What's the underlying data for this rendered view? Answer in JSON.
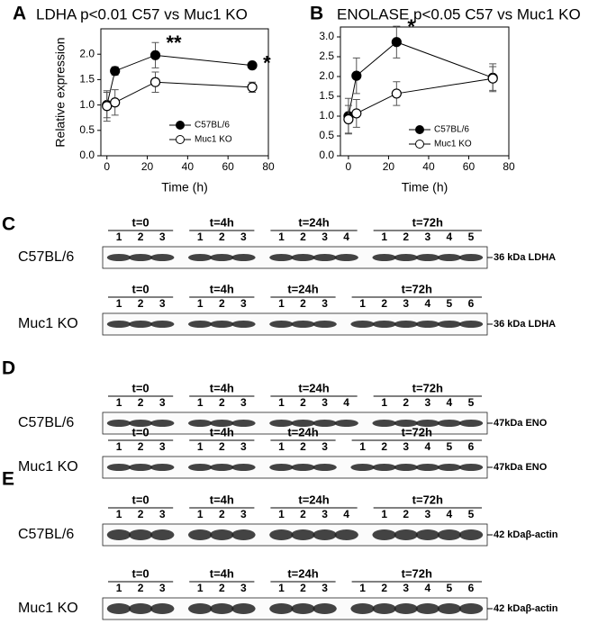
{
  "chart_data": [
    {
      "type": "line",
      "panel": "A",
      "title": "LDHA p<0.01 C57 vs Muc1 KO",
      "ylabel": "Relative expression",
      "xlabel": "Time (h)",
      "x": [
        0,
        4,
        24,
        72
      ],
      "series": [
        {
          "name": "C57BL/6",
          "color": "#000000",
          "filled": true,
          "values": [
            1.0,
            1.67,
            1.98,
            1.78
          ],
          "errors": [
            0.25,
            0.08,
            0.25,
            0.05
          ]
        },
        {
          "name": "Muc1 KO",
          "color": "#000000",
          "filled": false,
          "values": [
            0.98,
            1.05,
            1.45,
            1.35
          ],
          "errors": [
            0.3,
            0.25,
            0.2,
            0.1
          ]
        }
      ],
      "annotations": [
        {
          "text": "**",
          "x": 24
        },
        {
          "text": "*",
          "x": 72
        }
      ],
      "xlim": [
        -3,
        80
      ],
      "xticks": [
        0,
        20,
        40,
        60,
        80
      ],
      "ylim": [
        0,
        2.5
      ],
      "yticks": [
        {
          "value": 0,
          "label": "0.0"
        },
        0.5,
        {
          "value": 1,
          "label": "1.0"
        },
        1.5,
        {
          "value": 2,
          "label": "2.0"
        }
      ],
      "legend": "lower right"
    },
    {
      "type": "line",
      "panel": "B",
      "title": "ENOLASE p<0.05 C57 vs Muc1 KO",
      "xlabel": "Time (h)",
      "x": [
        0,
        4,
        24,
        72
      ],
      "series": [
        {
          "name": "C57BL/6",
          "color": "#000000",
          "filled": true,
          "values": [
            1.0,
            2.02,
            2.87,
            1.97
          ],
          "errors": [
            0.45,
            0.45,
            0.4,
            0.35
          ]
        },
        {
          "name": "Muc1 KO",
          "color": "#000000",
          "filled": false,
          "values": [
            0.92,
            1.07,
            1.57,
            1.95
          ],
          "errors": [
            0.35,
            0.35,
            0.3,
            0.3
          ]
        }
      ],
      "annotations": [
        {
          "text": "*",
          "x": 24
        }
      ],
      "xlim": [
        -4,
        80
      ],
      "xticks": [
        0,
        20,
        40,
        60,
        80
      ],
      "ylim": [
        0,
        3.25
      ],
      "yticks": [
        {
          "value": 0,
          "label": "0.0"
        },
        0.5,
        {
          "value": 1,
          "label": "1.0"
        },
        1.5,
        {
          "value": 2,
          "label": "2.0"
        },
        2.5,
        {
          "value": 3,
          "label": "3.0"
        }
      ],
      "legend": "lower right"
    }
  ],
  "blots": [
    {
      "panel": "C",
      "rows": [
        {
          "strain": "C57BL/6",
          "marker": "36 kDa LDHA",
          "groups": [
            {
              "label": "t=0",
              "lanes": [
                1,
                2,
                3
              ]
            },
            {
              "label": "t=4h",
              "lanes": [
                1,
                2,
                3
              ]
            },
            {
              "label": "t=24h",
              "lanes": [
                1,
                2,
                3,
                4
              ]
            },
            {
              "label": "t=72h",
              "lanes": [
                1,
                2,
                3,
                4,
                5
              ]
            }
          ]
        },
        {
          "strain": "Muc1 KO",
          "marker": "36 kDa LDHA",
          "groups": [
            {
              "label": "t=0",
              "lanes": [
                1,
                2,
                3
              ]
            },
            {
              "label": "t=4h",
              "lanes": [
                1,
                2,
                3
              ]
            },
            {
              "label": "t=24h",
              "lanes": [
                1,
                2,
                3
              ]
            },
            {
              "label": "t=72h",
              "lanes": [
                1,
                2,
                3,
                4,
                5,
                6
              ]
            }
          ]
        }
      ]
    },
    {
      "panel": "D",
      "rows": [
        {
          "strain": "C57BL/6",
          "marker": "47kDa ENO",
          "groups": [
            {
              "label": "t=0",
              "lanes": [
                1,
                2,
                3
              ]
            },
            {
              "label": "t=4h",
              "lanes": [
                1,
                2,
                3
              ]
            },
            {
              "label": "t=24h",
              "lanes": [
                1,
                2,
                3,
                4
              ]
            },
            {
              "label": "t=72h",
              "lanes": [
                1,
                2,
                3,
                4,
                5
              ]
            }
          ]
        },
        {
          "strain": "Muc1 KO",
          "marker": "47kDa ENO",
          "groups": [
            {
              "label": "t=0",
              "lanes": [
                1,
                2,
                3
              ]
            },
            {
              "label": "t=4h",
              "lanes": [
                1,
                2,
                3
              ]
            },
            {
              "label": "t=24h",
              "lanes": [
                1,
                2,
                3
              ]
            },
            {
              "label": "t=72h",
              "lanes": [
                1,
                2,
                3,
                4,
                5,
                6
              ]
            }
          ]
        }
      ]
    },
    {
      "panel": "E",
      "rows": [
        {
          "strain": "C57BL/6",
          "marker": "42 kDaβ-actin",
          "groups": [
            {
              "label": "t=0",
              "lanes": [
                1,
                2,
                3
              ]
            },
            {
              "label": "t=4h",
              "lanes": [
                1,
                2,
                3
              ]
            },
            {
              "label": "t=24h",
              "lanes": [
                1,
                2,
                3,
                4
              ]
            },
            {
              "label": "t=72h",
              "lanes": [
                1,
                2,
                3,
                4,
                5
              ]
            }
          ]
        },
        {
          "strain": "Muc1 KO",
          "marker": "42 kDaβ-actin",
          "groups": [
            {
              "label": "t=0",
              "lanes": [
                1,
                2,
                3
              ]
            },
            {
              "label": "t=4h",
              "lanes": [
                1,
                2,
                3
              ]
            },
            {
              "label": "t=24h",
              "lanes": [
                1,
                2,
                3
              ]
            },
            {
              "label": "t=72h",
              "lanes": [
                1,
                2,
                3,
                4,
                5,
                6
              ]
            }
          ]
        }
      ]
    }
  ]
}
